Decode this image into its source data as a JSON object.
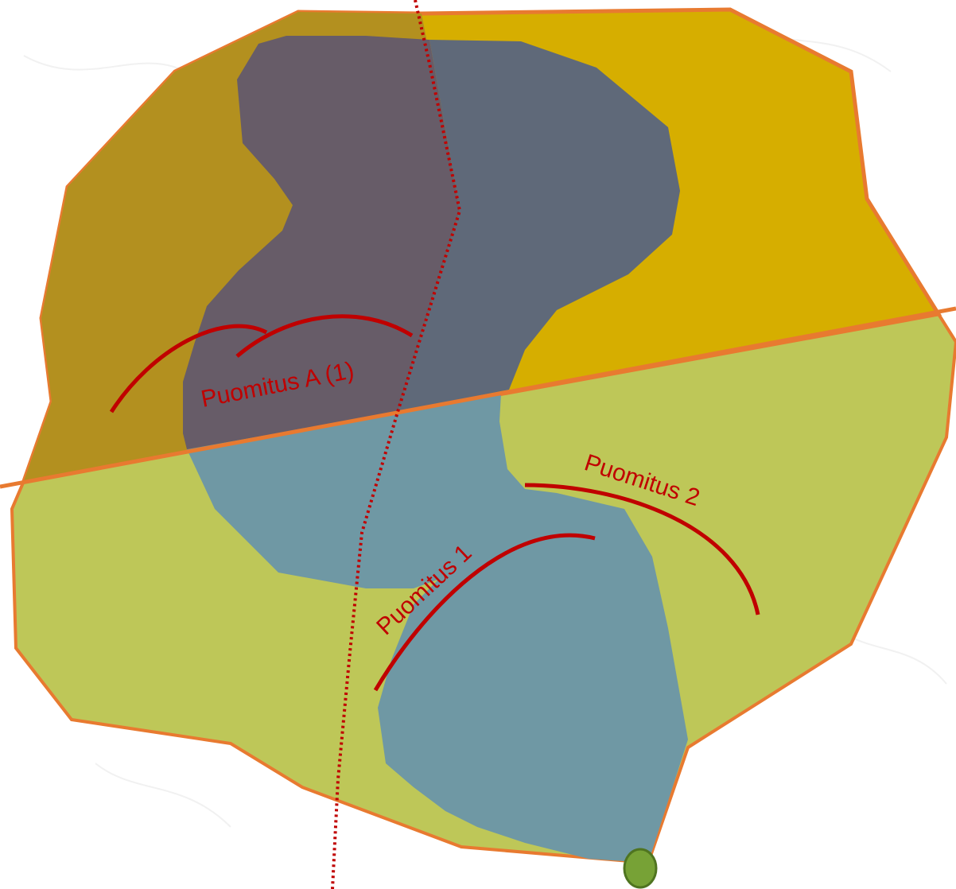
{
  "map": {
    "colors": {
      "background": "#ffffff",
      "background_texture": "#f1f1f1",
      "outline": "#e87a30",
      "north_zone": "#d6ae00",
      "north_zone_west_shade": "#b3901f",
      "south_zone": "#bec758",
      "water": "#6f98a4",
      "water_north": "#5f6979",
      "water_north_west": "#675c68",
      "boom_line": "#c00000",
      "boom_label": "#c00000",
      "divider_line": "#c00000",
      "marker_fill": "#77a236",
      "marker_stroke": "#4f7420"
    },
    "booms": [
      {
        "id": "boom-a1",
        "label": "Puomitus A (1)",
        "icon": "boom-line-icon"
      },
      {
        "id": "boom-1",
        "label": "Puomitus 1",
        "icon": "boom-line-icon"
      },
      {
        "id": "boom-2",
        "label": "Puomitus 2",
        "icon": "boom-line-icon"
      }
    ],
    "marker": {
      "icon": "location-marker-icon"
    },
    "divider": {
      "style": "dotted",
      "icon": "dotted-boundary-line"
    }
  }
}
